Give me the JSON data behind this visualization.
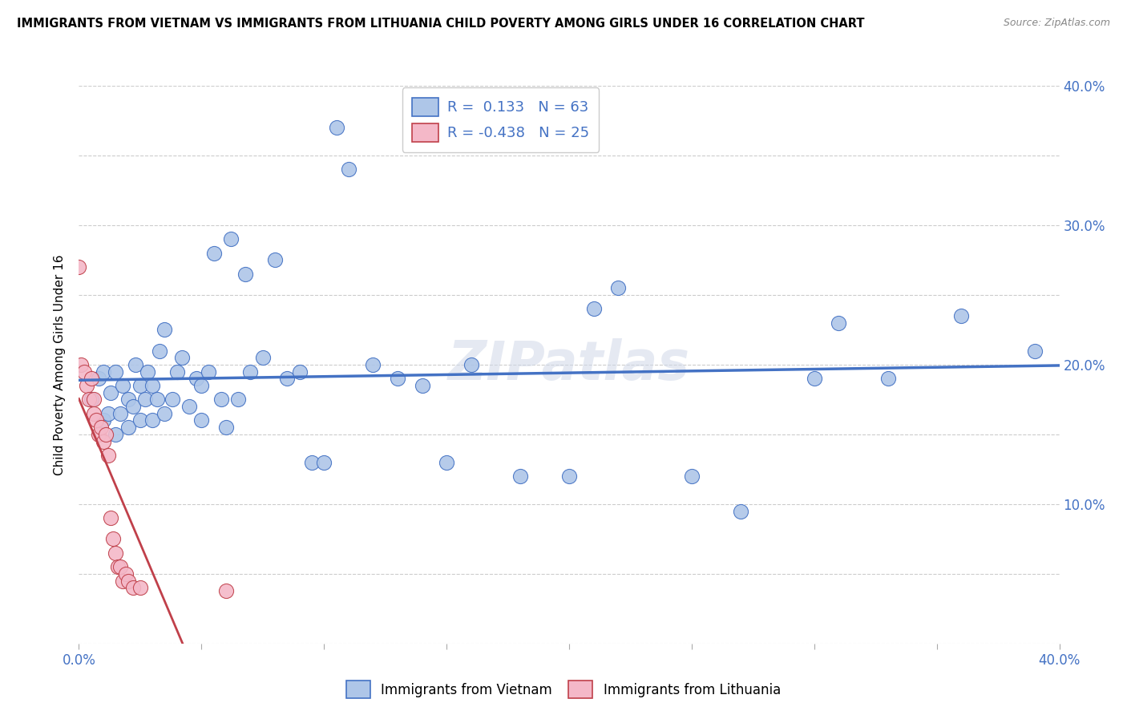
{
  "title": "IMMIGRANTS FROM VIETNAM VS IMMIGRANTS FROM LITHUANIA CHILD POVERTY AMONG GIRLS UNDER 16 CORRELATION CHART",
  "source": "Source: ZipAtlas.com",
  "ylabel": "Child Poverty Among Girls Under 16",
  "xlim": [
    0.0,
    0.4
  ],
  "ylim": [
    0.0,
    0.4
  ],
  "vietnam_R": 0.133,
  "vietnam_N": 63,
  "lithuania_R": -0.438,
  "lithuania_N": 25,
  "vietnam_color": "#aec6e8",
  "vietnam_edge_color": "#4472c4",
  "lithuania_color": "#f4b8c8",
  "lithuania_edge_color": "#c0404a",
  "vietnam_line_color": "#4472c4",
  "lithuania_line_color": "#c0404a",
  "watermark": "ZIPatlas",
  "vietnam_scatter_x": [
    0.005,
    0.008,
    0.01,
    0.01,
    0.012,
    0.013,
    0.015,
    0.015,
    0.017,
    0.018,
    0.02,
    0.02,
    0.022,
    0.023,
    0.025,
    0.025,
    0.027,
    0.028,
    0.03,
    0.03,
    0.032,
    0.033,
    0.035,
    0.035,
    0.038,
    0.04,
    0.042,
    0.045,
    0.048,
    0.05,
    0.05,
    0.053,
    0.055,
    0.058,
    0.06,
    0.062,
    0.065,
    0.068,
    0.07,
    0.075,
    0.08,
    0.085,
    0.09,
    0.095,
    0.1,
    0.105,
    0.11,
    0.12,
    0.13,
    0.14,
    0.15,
    0.16,
    0.18,
    0.2,
    0.21,
    0.22,
    0.25,
    0.27,
    0.3,
    0.31,
    0.33,
    0.36,
    0.39
  ],
  "vietnam_scatter_y": [
    0.175,
    0.19,
    0.16,
    0.195,
    0.165,
    0.18,
    0.15,
    0.195,
    0.165,
    0.185,
    0.155,
    0.175,
    0.17,
    0.2,
    0.16,
    0.185,
    0.175,
    0.195,
    0.16,
    0.185,
    0.175,
    0.21,
    0.165,
    0.225,
    0.175,
    0.195,
    0.205,
    0.17,
    0.19,
    0.16,
    0.185,
    0.195,
    0.28,
    0.175,
    0.155,
    0.29,
    0.175,
    0.265,
    0.195,
    0.205,
    0.275,
    0.19,
    0.195,
    0.13,
    0.13,
    0.37,
    0.34,
    0.2,
    0.19,
    0.185,
    0.13,
    0.2,
    0.12,
    0.12,
    0.24,
    0.255,
    0.12,
    0.095,
    0.19,
    0.23,
    0.19,
    0.235,
    0.21
  ],
  "lithuania_scatter_x": [
    0.0,
    0.001,
    0.002,
    0.003,
    0.004,
    0.005,
    0.006,
    0.006,
    0.007,
    0.008,
    0.009,
    0.01,
    0.011,
    0.012,
    0.013,
    0.014,
    0.015,
    0.016,
    0.017,
    0.018,
    0.019,
    0.02,
    0.022,
    0.025,
    0.06
  ],
  "lithuania_scatter_y": [
    0.27,
    0.2,
    0.195,
    0.185,
    0.175,
    0.19,
    0.175,
    0.165,
    0.16,
    0.15,
    0.155,
    0.145,
    0.15,
    0.135,
    0.09,
    0.075,
    0.065,
    0.055,
    0.055,
    0.045,
    0.05,
    0.045,
    0.04,
    0.04,
    0.038
  ]
}
